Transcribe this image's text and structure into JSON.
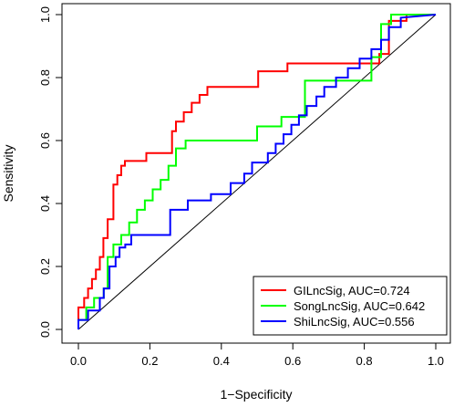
{
  "chart_data": {
    "type": "line",
    "title": "",
    "xlabel": "1−Specificity",
    "ylabel": "Sensitivity",
    "xlim": [
      0,
      1
    ],
    "ylim": [
      0,
      1
    ],
    "xticks": [
      "0.0",
      "0.2",
      "0.4",
      "0.6",
      "0.8",
      "1.0"
    ],
    "yticks": [
      "0.0",
      "0.2",
      "0.4",
      "0.6",
      "0.8",
      "1.0"
    ],
    "grid": false,
    "legend": "bottom-right",
    "diagonal_reference": true,
    "series": [
      {
        "name": "GILncSig, AUC=0.724",
        "color": "#ff0000",
        "x": [
          0,
          0,
          0.016,
          0.016,
          0.027,
          0.027,
          0.038,
          0.038,
          0.049,
          0.049,
          0.06,
          0.06,
          0.07,
          0.07,
          0.082,
          0.082,
          0.098,
          0.098,
          0.109,
          0.109,
          0.12,
          0.12,
          0.13,
          0.13,
          0.19,
          0.19,
          0.262,
          0.262,
          0.273,
          0.273,
          0.295,
          0.295,
          0.317,
          0.317,
          0.339,
          0.339,
          0.361,
          0.361,
          0.503,
          0.503,
          0.585,
          0.585,
          0.842,
          0.842,
          0.869,
          0.869,
          0.918,
          0.918,
          1.0
        ],
        "y": [
          0,
          0.07,
          0.07,
          0.1,
          0.1,
          0.13,
          0.13,
          0.16,
          0.16,
          0.19,
          0.19,
          0.23,
          0.23,
          0.29,
          0.29,
          0.35,
          0.35,
          0.46,
          0.46,
          0.49,
          0.49,
          0.52,
          0.52,
          0.535,
          0.535,
          0.56,
          0.56,
          0.63,
          0.63,
          0.66,
          0.66,
          0.69,
          0.69,
          0.72,
          0.72,
          0.745,
          0.745,
          0.77,
          0.77,
          0.82,
          0.82,
          0.845,
          0.845,
          0.875,
          0.875,
          0.98,
          0.98,
          1.0,
          1.0
        ]
      },
      {
        "name": "SongLncSig, AUC=0.642",
        "color": "#00ff00",
        "x": [
          0,
          0,
          0.022,
          0.022,
          0.044,
          0.044,
          0.071,
          0.071,
          0.082,
          0.082,
          0.098,
          0.098,
          0.12,
          0.12,
          0.142,
          0.142,
          0.164,
          0.164,
          0.186,
          0.186,
          0.208,
          0.208,
          0.23,
          0.23,
          0.252,
          0.252,
          0.273,
          0.273,
          0.3,
          0.3,
          0.5,
          0.5,
          0.568,
          0.568,
          0.634,
          0.634,
          0.82,
          0.82,
          0.847,
          0.847,
          0.875,
          0.875,
          1.0
        ],
        "y": [
          0,
          0.03,
          0.03,
          0.07,
          0.07,
          0.1,
          0.1,
          0.13,
          0.13,
          0.23,
          0.23,
          0.27,
          0.27,
          0.3,
          0.3,
          0.34,
          0.34,
          0.38,
          0.38,
          0.41,
          0.41,
          0.445,
          0.445,
          0.475,
          0.475,
          0.52,
          0.52,
          0.575,
          0.575,
          0.6,
          0.6,
          0.645,
          0.645,
          0.675,
          0.675,
          0.79,
          0.79,
          0.865,
          0.865,
          0.97,
          0.97,
          1.0,
          1.0
        ]
      },
      {
        "name": "ShiLncSig, AUC=0.556",
        "color": "#0000ff",
        "x": [
          0,
          0,
          0.027,
          0.027,
          0.06,
          0.06,
          0.071,
          0.071,
          0.087,
          0.087,
          0.104,
          0.104,
          0.115,
          0.115,
          0.131,
          0.131,
          0.148,
          0.148,
          0.257,
          0.257,
          0.306,
          0.306,
          0.371,
          0.371,
          0.426,
          0.426,
          0.464,
          0.464,
          0.486,
          0.486,
          0.53,
          0.53,
          0.552,
          0.552,
          0.574,
          0.574,
          0.596,
          0.596,
          0.617,
          0.617,
          0.639,
          0.639,
          0.666,
          0.666,
          0.688,
          0.688,
          0.721,
          0.721,
          0.754,
          0.754,
          0.787,
          0.787,
          0.82,
          0.82,
          0.847,
          0.847,
          0.869,
          0.869,
          0.902,
          0.902,
          1.0
        ],
        "y": [
          0,
          0.03,
          0.03,
          0.06,
          0.06,
          0.1,
          0.1,
          0.13,
          0.13,
          0.2,
          0.2,
          0.23,
          0.23,
          0.26,
          0.26,
          0.27,
          0.27,
          0.3,
          0.3,
          0.38,
          0.38,
          0.41,
          0.41,
          0.43,
          0.43,
          0.465,
          0.465,
          0.495,
          0.495,
          0.53,
          0.53,
          0.56,
          0.56,
          0.59,
          0.59,
          0.62,
          0.62,
          0.65,
          0.65,
          0.68,
          0.68,
          0.71,
          0.71,
          0.74,
          0.74,
          0.77,
          0.77,
          0.8,
          0.8,
          0.83,
          0.83,
          0.86,
          0.86,
          0.89,
          0.89,
          0.92,
          0.92,
          0.96,
          0.96,
          0.99,
          1.0
        ]
      }
    ]
  }
}
